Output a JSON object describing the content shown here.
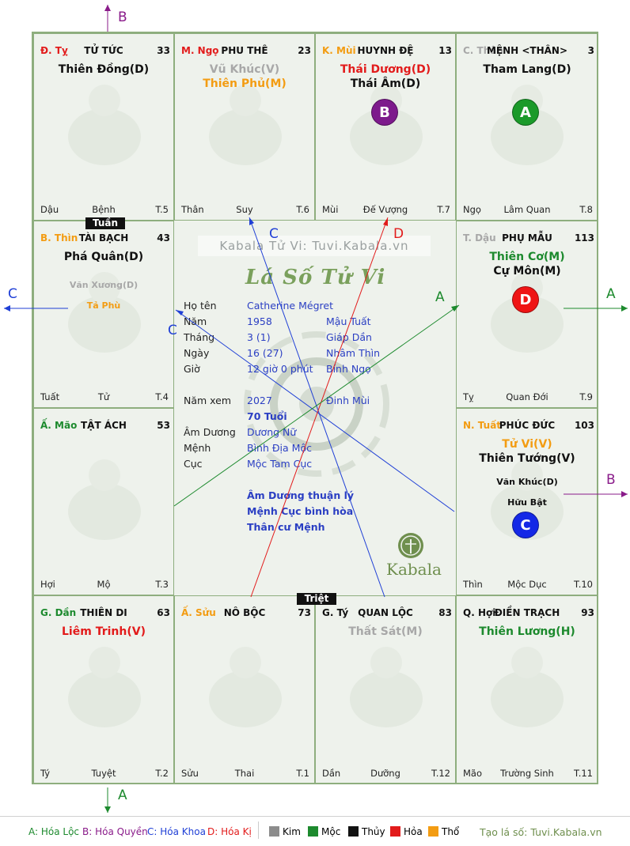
{
  "colors": {
    "kim": "#8c8c8c",
    "moc": "#1d8a2e",
    "thuy": "#111111",
    "hoa": "#e21b1b",
    "tho": "#f39c12",
    "gray_star": "#a8a8a8",
    "orange": "#f39c12",
    "red": "#e21b1b",
    "green": "#1d8a2e",
    "black": "#111111",
    "purple": "#8a1b8a",
    "blue": "#1f3fd6",
    "circle_a": "#1b9a2a",
    "circle_b": "#7d1a8c",
    "circle_c": "#1428e6",
    "circle_d": "#ef1414"
  },
  "cells": [
    {
      "id": "ty",
      "can": "Đ. Tỵ",
      "can_color": "#e21b1b",
      "palace": "TỬ TỨC",
      "number": "33",
      "stars": [
        {
          "name": "Thiên Đồng(D)",
          "color": "#111111"
        }
      ],
      "minor": [],
      "branch": "Dậu",
      "stage": "Bệnh",
      "age": "T.5",
      "animal": "snake-icon"
    },
    {
      "id": "ngo",
      "can": "M. Ngọ",
      "can_color": "#e21b1b",
      "palace": "PHU THÊ",
      "number": "23",
      "stars": [
        {
          "name": "Vũ Khúc(V)",
          "color": "#a8a8a8"
        },
        {
          "name": "Thiên Phủ(M)",
          "color": "#f39c12"
        }
      ],
      "minor": [],
      "branch": "Thân",
      "stage": "Suy",
      "age": "T.6",
      "animal": "horse-icon"
    },
    {
      "id": "mui",
      "can": "K. Mùi",
      "can_color": "#f39c12",
      "palace": "HUYNH ĐỆ",
      "number": "13",
      "stars": [
        {
          "name": "Thái Dương(D)",
          "color": "#e21b1b"
        },
        {
          "name": "Thái Âm(D)",
          "color": "#111111"
        }
      ],
      "minor": [],
      "branch": "Mùi",
      "stage": "Đế Vượng",
      "age": "T.7",
      "animal": "goat-icon",
      "circle": "B"
    },
    {
      "id": "than",
      "can": "C. Thân",
      "can_color": "#a8a8a8",
      "palace": "MỆNH <THÂN>",
      "number": "3",
      "stars": [
        {
          "name": "Tham Lang(D)",
          "color": "#111111"
        }
      ],
      "minor": [],
      "branch": "Ngọ",
      "stage": "Lâm Quan",
      "age": "T.8",
      "animal": "monkey-icon",
      "circle": "A"
    },
    {
      "id": "thin",
      "can": "B. Thìn",
      "can_color": "#f39c12",
      "palace": "TÀI BẠCH",
      "number": "43",
      "stars": [
        {
          "name": "Phá Quân(D)",
          "color": "#111111"
        }
      ],
      "minor": [
        {
          "name": "Văn Xương(D)",
          "color": "#a8a8a8"
        },
        {
          "name": "Tả Phù",
          "color": "#f39c12"
        }
      ],
      "branch": "Tuất",
      "stage": "Tử",
      "age": "T.4",
      "animal": "dragon-icon"
    },
    {
      "id": "dau",
      "can": "T. Dậu",
      "can_color": "#a8a8a8",
      "palace": "PHỤ MẪU",
      "number": "113",
      "stars": [
        {
          "name": "Thiên Cơ(M)",
          "color": "#1d8a2e"
        },
        {
          "name": "Cự Môn(M)",
          "color": "#111111"
        }
      ],
      "minor": [],
      "branch": "Tỵ",
      "stage": "Quan Đới",
      "age": "T.9",
      "animal": "rooster-icon",
      "circle": "D"
    },
    {
      "id": "mao",
      "can": "Ấ. Mão",
      "can_color": "#1d8a2e",
      "palace": "TẬT ÁCH",
      "number": "53",
      "stars": [],
      "minor": [],
      "branch": "Hợi",
      "stage": "Mộ",
      "age": "T.3",
      "animal": "rabbit-icon"
    },
    {
      "id": "tuat",
      "can": "N. Tuất",
      "can_color": "#f39c12",
      "palace": "PHÚC ĐỨC",
      "number": "103",
      "stars": [
        {
          "name": "Tử Vi(V)",
          "color": "#f39c12"
        },
        {
          "name": "Thiên Tướng(V)",
          "color": "#111111"
        }
      ],
      "minor": [
        {
          "name": "Văn Khúc(D)",
          "color": "#111111"
        },
        {
          "name": "Hữu Bật",
          "color": "#111111"
        }
      ],
      "branch": "Thìn",
      "stage": "Mộc Dục",
      "age": "T.10",
      "animal": "dog-icon",
      "circle": "C"
    },
    {
      "id": "dan",
      "can": "G. Dần",
      "can_color": "#1d8a2e",
      "palace": "THIÊN DI",
      "number": "63",
      "stars": [
        {
          "name": "Liêm Trinh(V)",
          "color": "#e21b1b"
        }
      ],
      "minor": [],
      "branch": "Tý",
      "stage": "Tuyệt",
      "age": "T.2",
      "animal": "tiger-icon"
    },
    {
      "id": "suu",
      "can": "Ấ. Sửu",
      "can_color": "#f39c12",
      "palace": "NÔ BỘC",
      "number": "73",
      "stars": [],
      "minor": [],
      "branch": "Sửu",
      "stage": "Thai",
      "age": "T.1",
      "animal": "ox-icon"
    },
    {
      "id": "ty2",
      "can": "G. Tý",
      "can_color": "#111111",
      "palace": "QUAN LỘC",
      "number": "83",
      "stars": [
        {
          "name": "Thất Sát(M)",
          "color": "#a8a8a8"
        }
      ],
      "minor": [],
      "branch": "Dần",
      "stage": "Dưỡng",
      "age": "T.12",
      "animal": "rat-icon"
    },
    {
      "id": "hoi",
      "can": "Q. Hợi",
      "can_color": "#111111",
      "palace": "ĐIỀN TRẠCH",
      "number": "93",
      "stars": [
        {
          "name": "Thiên Lương(H)",
          "color": "#1d8a2e"
        }
      ],
      "minor": [],
      "branch": "Mão",
      "stage": "Trường Sinh",
      "age": "T.11",
      "animal": "pig-icon"
    }
  ],
  "tags": {
    "tuan": "Tuần",
    "triet": "Triệt"
  },
  "circles": {
    "A": "A",
    "B": "B",
    "C": "C",
    "D": "D"
  },
  "center": {
    "watermark": "Kabala Tử Vi: Tuvi.Kabala.vn",
    "title": "Lá Số Tử Vi",
    "rows": [
      {
        "label": "Họ tên",
        "value": "Catherine Mégret",
        "extra": ""
      },
      {
        "label": "Năm",
        "value": "1958",
        "extra": "Mậu Tuất"
      },
      {
        "label": "Tháng",
        "value": "3  (1)",
        "extra": "Giáp Dần"
      },
      {
        "label": "Ngày",
        "value": "16  (27)",
        "extra": "Nhâm Thìn"
      },
      {
        "label": "Giờ",
        "value": "12 giờ 0 phút",
        "extra": "Bính Ngọ"
      },
      {
        "label": "Năm xem",
        "value": "2027",
        "extra": "Đinh Mùi"
      },
      {
        "label": "",
        "value": "70 Tuổi",
        "extra": ""
      },
      {
        "label": "Âm Dương",
        "value": "Dương Nữ",
        "extra": ""
      },
      {
        "label": "Mệnh",
        "value": "Bình Địa Mộc",
        "extra": ""
      },
      {
        "label": "Cục",
        "value": "Mộc Tam Cục",
        "extra": ""
      }
    ],
    "notes": [
      "Âm Dương thuận lý",
      "Mệnh Cục bình hòa",
      "Thân cư Mệnh"
    ],
    "brand": "Kabala"
  },
  "arrows": {
    "B_top": "B",
    "C_left": "C",
    "A_right": "A",
    "B_right": "B",
    "A_bottom": "A",
    "C_mid1": "C",
    "C_mid2": "C",
    "D_mid": "D",
    "A_mid": "A"
  },
  "legend": {
    "a": "A: Hóa Lộc",
    "b": "B: Hóa Quyền",
    "c": "C: Hóa Khoa",
    "d": "D: Hóa Kị",
    "kim": "Kim",
    "moc": "Mộc",
    "thuy": "Thủy",
    "hoa": "Hỏa",
    "tho": "Thổ",
    "site": "Tạo lá số: Tuvi.Kabala.vn"
  }
}
